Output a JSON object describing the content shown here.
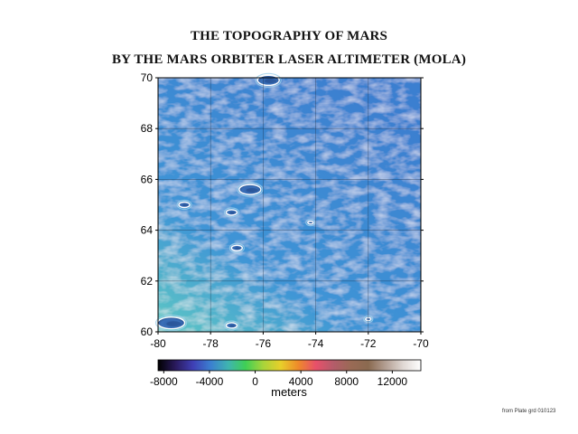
{
  "title_line1": "THE TOPOGRAPHY OF MARS",
  "title_line2": "BY THE MARS ORBITER LASER ALTIMETER (MOLA)",
  "map": {
    "lon_range": [
      -80,
      -70
    ],
    "lat_range": [
      60,
      70
    ],
    "x_ticks": [
      "-80",
      "-78",
      "-76",
      "-74",
      "-72",
      "-70"
    ],
    "y_ticks": [
      "70",
      "68",
      "66",
      "64",
      "62",
      "60"
    ],
    "grid": true,
    "terrain_colors": {
      "high": "#5fc9c4",
      "mid": "#3f95d6",
      "low": "#3b7fd0"
    },
    "craters": [
      {
        "lon": -75.8,
        "lat": 69.9,
        "size": "medium"
      },
      {
        "lon": -76.5,
        "lat": 65.6,
        "size": "medium"
      },
      {
        "lon": -79.0,
        "lat": 65.0,
        "size": "small"
      },
      {
        "lon": -77.2,
        "lat": 64.7,
        "size": "small"
      },
      {
        "lon": -77.0,
        "lat": 63.3,
        "size": "small"
      },
      {
        "lon": -79.5,
        "lat": 60.35,
        "size": "large"
      },
      {
        "lon": -77.2,
        "lat": 60.25,
        "size": "small"
      },
      {
        "lon": -74.2,
        "lat": 64.3,
        "size": "tiny"
      },
      {
        "lon": -72.0,
        "lat": 60.5,
        "size": "tiny"
      }
    ]
  },
  "colorbar": {
    "ticks": [
      "-8000",
      "-4000",
      "0",
      "4000",
      "8000",
      "12000"
    ],
    "tick_values": [
      -8000,
      -4000,
      0,
      4000,
      8000,
      12000
    ],
    "range": [
      -8500,
      14500
    ],
    "label": "meters",
    "stops": [
      "#000000",
      "#2a1a5e",
      "#3f3fb5",
      "#3b7fd0",
      "#3fb4b0",
      "#3fcf55",
      "#a8d43a",
      "#e8cf2a",
      "#ee8a2a",
      "#e8506a",
      "#b45c6a",
      "#9a6a55",
      "#8a6a50",
      "#b4a094",
      "#e0d8d4",
      "#ffffff"
    ]
  },
  "credit": "from Plate grd 010123"
}
